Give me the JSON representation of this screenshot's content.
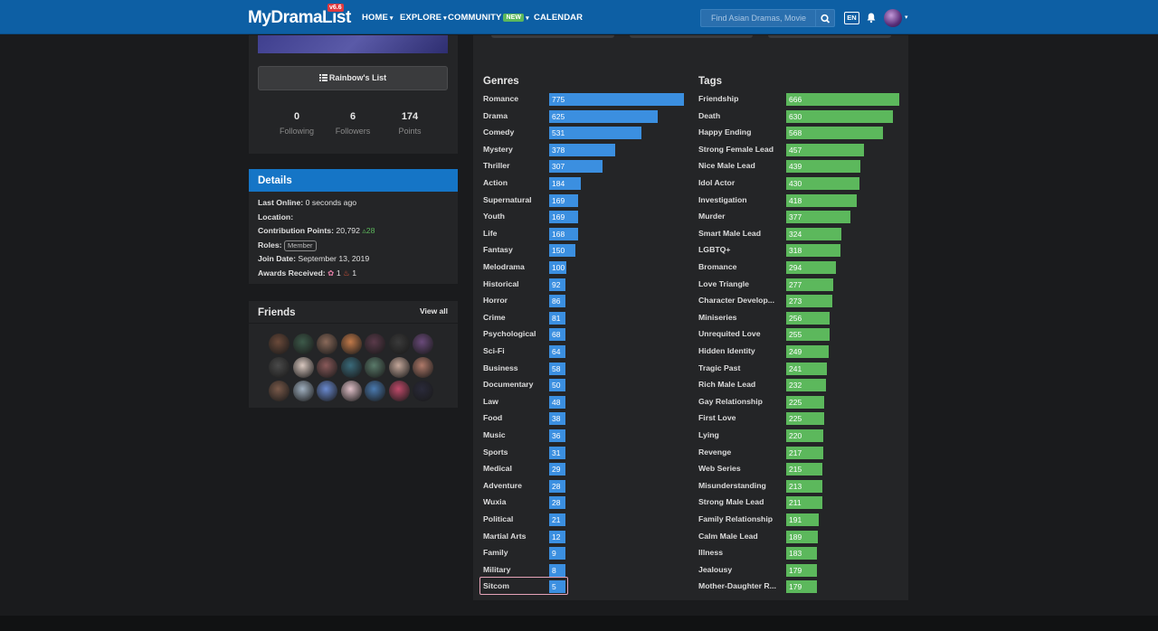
{
  "nav": {
    "logo": "MyDramaList",
    "version": "v6.6",
    "items": [
      {
        "label": "HOME",
        "caret": "▾"
      },
      {
        "label": "EXPLORE",
        "caret": "▾"
      },
      {
        "label": "COMMUNITY",
        "badge": "NEW",
        "caret": "▾"
      },
      {
        "label": "CALENDAR"
      }
    ],
    "search_placeholder": "Find Asian Dramas, Movie",
    "lang": "EN"
  },
  "profile": {
    "list_button": "Rainbow's List",
    "stats": [
      {
        "value": "0",
        "label": "Following"
      },
      {
        "value": "6",
        "label": "Followers"
      },
      {
        "value": "174",
        "label": "Points"
      }
    ]
  },
  "details": {
    "title": "Details",
    "last_online_label": "Last Online:",
    "last_online": "0 seconds ago",
    "location_label": "Location:",
    "contribution_label": "Contribution Points:",
    "contribution_points": "20,792",
    "contribution_delta": "28",
    "roles_label": "Roles:",
    "role": "Member",
    "join_label": "Join Date:",
    "join_date": "September 13, 2019",
    "awards_label": "Awards Received:",
    "award_1_count": "1",
    "award_2_count": "1"
  },
  "friends": {
    "title": "Friends",
    "view_all": "View all",
    "count": 21
  },
  "genres": {
    "title": "Genres",
    "items": [
      {
        "label": "Romance",
        "value": 775
      },
      {
        "label": "Drama",
        "value": 625
      },
      {
        "label": "Comedy",
        "value": 531
      },
      {
        "label": "Mystery",
        "value": 378
      },
      {
        "label": "Thriller",
        "value": 307
      },
      {
        "label": "Action",
        "value": 184
      },
      {
        "label": "Supernatural",
        "value": 169
      },
      {
        "label": "Youth",
        "value": 169
      },
      {
        "label": "Life",
        "value": 168
      },
      {
        "label": "Fantasy",
        "value": 150
      },
      {
        "label": "Melodrama",
        "value": 100
      },
      {
        "label": "Historical",
        "value": 92
      },
      {
        "label": "Horror",
        "value": 86
      },
      {
        "label": "Crime",
        "value": 81
      },
      {
        "label": "Psychological",
        "value": 68
      },
      {
        "label": "Sci-Fi",
        "value": 64
      },
      {
        "label": "Business",
        "value": 58
      },
      {
        "label": "Documentary",
        "value": 50
      },
      {
        "label": "Law",
        "value": 48
      },
      {
        "label": "Food",
        "value": 38
      },
      {
        "label": "Music",
        "value": 36
      },
      {
        "label": "Sports",
        "value": 31
      },
      {
        "label": "Medical",
        "value": 29
      },
      {
        "label": "Adventure",
        "value": 28
      },
      {
        "label": "Wuxia",
        "value": 28
      },
      {
        "label": "Political",
        "value": 21
      },
      {
        "label": "Martial Arts",
        "value": 12
      },
      {
        "label": "Family",
        "value": 9
      },
      {
        "label": "Military",
        "value": 8
      },
      {
        "label": "Sitcom",
        "value": 5
      }
    ]
  },
  "tags": {
    "title": "Tags",
    "items": [
      {
        "label": "Friendship",
        "value": 666
      },
      {
        "label": "Death",
        "value": 630
      },
      {
        "label": "Happy Ending",
        "value": 568
      },
      {
        "label": "Strong Female Lead",
        "value": 457
      },
      {
        "label": "Nice Male Lead",
        "value": 439
      },
      {
        "label": "Idol Actor",
        "value": 430
      },
      {
        "label": "Investigation",
        "value": 418
      },
      {
        "label": "Murder",
        "value": 377
      },
      {
        "label": "Smart Male Lead",
        "value": 324
      },
      {
        "label": "LGBTQ+",
        "value": 318
      },
      {
        "label": "Bromance",
        "value": 294
      },
      {
        "label": "Love Triangle",
        "value": 277
      },
      {
        "label": "Character Develop...",
        "value": 273
      },
      {
        "label": "Miniseries",
        "value": 256
      },
      {
        "label": "Unrequited Love",
        "value": 255
      },
      {
        "label": "Hidden Identity",
        "value": 249
      },
      {
        "label": "Tragic Past",
        "value": 241
      },
      {
        "label": "Rich Male Lead",
        "value": 232
      },
      {
        "label": "Gay Relationship",
        "value": 225
      },
      {
        "label": "First Love",
        "value": 225
      },
      {
        "label": "Lying",
        "value": 220
      },
      {
        "label": "Revenge",
        "value": 217
      },
      {
        "label": "Web Series",
        "value": 215
      },
      {
        "label": "Misunderstanding",
        "value": 213
      },
      {
        "label": "Strong Male Lead",
        "value": 211
      },
      {
        "label": "Family Relationship",
        "value": 191
      },
      {
        "label": "Calm Male Lead",
        "value": 189
      },
      {
        "label": "Illness",
        "value": 183
      },
      {
        "label": "Jealousy",
        "value": 179
      },
      {
        "label": "Mother-Daughter R...",
        "value": 179
      }
    ]
  },
  "colors": {
    "genre_bar": "#3b8fe0",
    "tag_bar": "#5cb85c",
    "navbar": "#0d5fa4"
  },
  "selected_genre": "Sitcom"
}
